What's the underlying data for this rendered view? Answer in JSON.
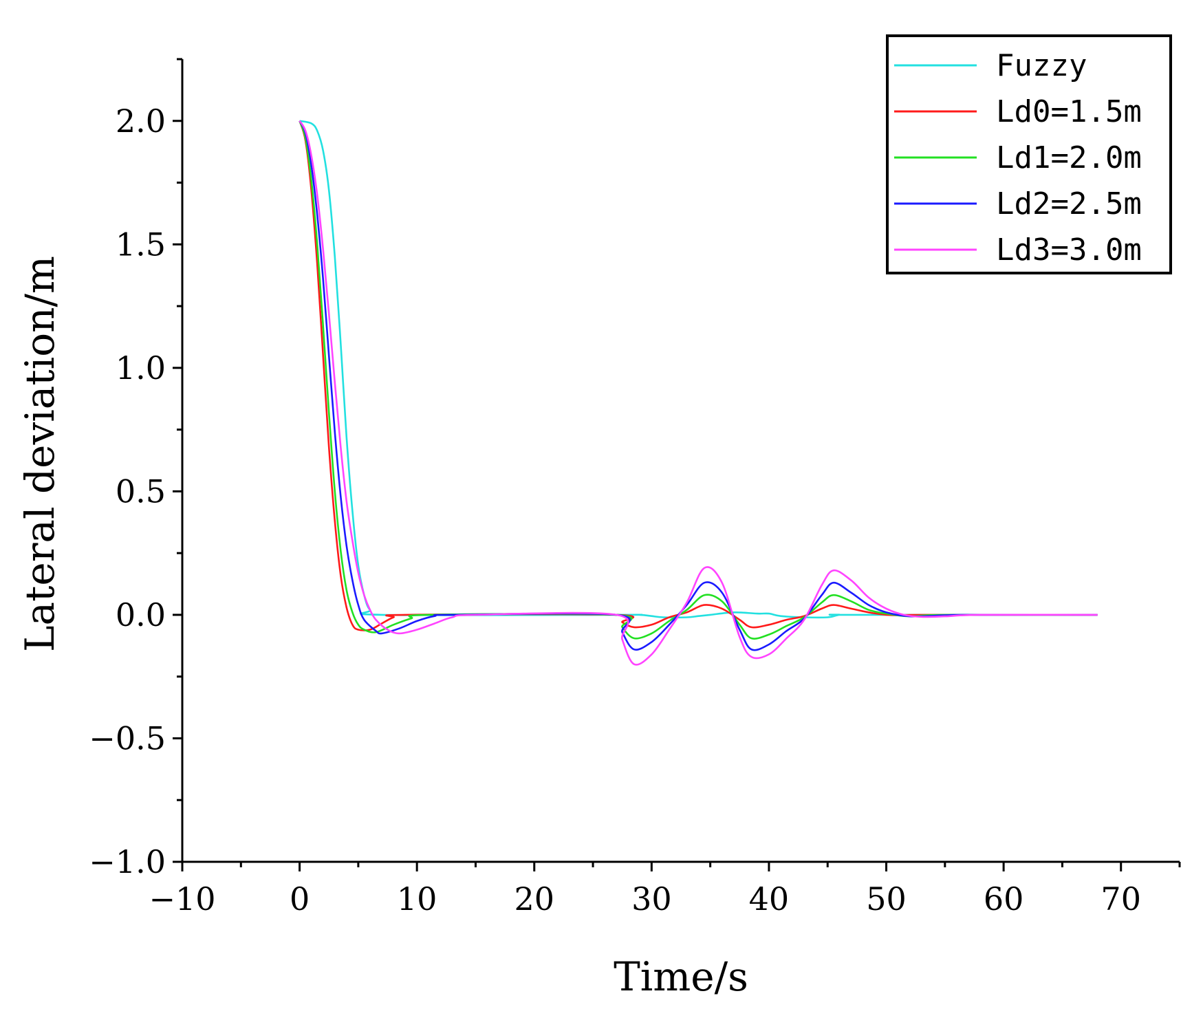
{
  "chart_data": {
    "type": "line",
    "xlabel": "Time/s",
    "ylabel": "Lateral deviation/m",
    "xlim": [
      -10,
      75
    ],
    "ylim": [
      -1.0,
      2.25
    ],
    "x_ticks": [
      -10,
      0,
      10,
      20,
      30,
      40,
      50,
      60,
      70
    ],
    "x_tick_labels": [
      "−10",
      "0",
      "10",
      "20",
      "30",
      "40",
      "50",
      "60",
      "70"
    ],
    "y_ticks": [
      -1.0,
      -0.5,
      0.0,
      0.5,
      1.0,
      1.5,
      2.0
    ],
    "y_tick_labels": [
      "−1.0",
      "−0.5",
      "0.0",
      "0.5",
      "1.0",
      "1.5",
      "2.0"
    ],
    "grid": false,
    "legend_position": "top-right",
    "series": [
      {
        "name": "Fuzzy",
        "color": "#22e0e0",
        "points": [
          [
            0,
            2.0
          ],
          [
            1,
            1.99
          ],
          [
            1.5,
            1.96
          ],
          [
            2,
            1.88
          ],
          [
            2.5,
            1.72
          ],
          [
            3,
            1.45
          ],
          [
            3.5,
            1.1
          ],
          [
            4,
            0.72
          ],
          [
            4.5,
            0.42
          ],
          [
            5,
            0.2
          ],
          [
            5.5,
            0.08
          ],
          [
            6,
            0.02
          ],
          [
            7,
            0.0
          ],
          [
            27,
            0.0
          ],
          [
            29,
            0.0
          ],
          [
            30,
            -0.005
          ],
          [
            31,
            -0.01
          ],
          [
            33,
            -0.01
          ],
          [
            34,
            -0.005
          ],
          [
            35,
            0.0
          ],
          [
            37,
            0.01
          ],
          [
            39,
            0.005
          ],
          [
            40,
            0.005
          ],
          [
            41,
            -0.005
          ],
          [
            43,
            -0.01
          ],
          [
            45,
            -0.01
          ],
          [
            46,
            0.0
          ],
          [
            47,
            0.0
          ],
          [
            68,
            0.0
          ]
        ]
      },
      {
        "name": "Ld0=1.5m",
        "color": "#ff1a1a",
        "points": [
          [
            0,
            2.0
          ],
          [
            0.5,
            1.92
          ],
          [
            1,
            1.72
          ],
          [
            1.5,
            1.42
          ],
          [
            2,
            1.05
          ],
          [
            2.5,
            0.68
          ],
          [
            3,
            0.38
          ],
          [
            3.5,
            0.16
          ],
          [
            4,
            0.03
          ],
          [
            4.5,
            -0.04
          ],
          [
            5,
            -0.06
          ],
          [
            6,
            -0.06
          ],
          [
            7,
            -0.035
          ],
          [
            8,
            -0.01
          ],
          [
            9,
            0.0
          ],
          [
            27,
            0.0
          ],
          [
            27.5,
            -0.03
          ],
          [
            28.5,
            -0.05
          ],
          [
            30,
            -0.04
          ],
          [
            31.5,
            -0.01
          ],
          [
            33,
            0.01
          ],
          [
            34.5,
            0.04
          ],
          [
            36,
            0.025
          ],
          [
            37.5,
            -0.02
          ],
          [
            38.5,
            -0.05
          ],
          [
            40,
            -0.04
          ],
          [
            41.5,
            -0.02
          ],
          [
            43,
            -0.005
          ],
          [
            44.5,
            0.025
          ],
          [
            45.5,
            0.04
          ],
          [
            47,
            0.025
          ],
          [
            48.5,
            0.01
          ],
          [
            50,
            0.0
          ],
          [
            51.5,
            -0.002
          ],
          [
            53,
            0.0
          ],
          [
            68,
            0.0
          ]
        ]
      },
      {
        "name": "Ld1=2.0m",
        "color": "#22e022",
        "points": [
          [
            0,
            2.0
          ],
          [
            0.5,
            1.93
          ],
          [
            1,
            1.76
          ],
          [
            1.5,
            1.5
          ],
          [
            2,
            1.17
          ],
          [
            2.5,
            0.82
          ],
          [
            3,
            0.5
          ],
          [
            3.5,
            0.26
          ],
          [
            4,
            0.1
          ],
          [
            4.5,
            0.01
          ],
          [
            5,
            -0.04
          ],
          [
            5.5,
            -0.06
          ],
          [
            6.5,
            -0.07
          ],
          [
            8,
            -0.04
          ],
          [
            9.5,
            -0.015
          ],
          [
            11,
            0.0
          ],
          [
            27,
            0.0
          ],
          [
            27.5,
            -0.05
          ],
          [
            28.5,
            -0.095
          ],
          [
            30,
            -0.075
          ],
          [
            31.5,
            -0.025
          ],
          [
            33,
            0.02
          ],
          [
            34.5,
            0.08
          ],
          [
            36,
            0.055
          ],
          [
            37.5,
            -0.04
          ],
          [
            38.5,
            -0.095
          ],
          [
            40,
            -0.08
          ],
          [
            41.5,
            -0.045
          ],
          [
            43,
            -0.01
          ],
          [
            44.5,
            0.05
          ],
          [
            45.5,
            0.08
          ],
          [
            47,
            0.055
          ],
          [
            48.5,
            0.02
          ],
          [
            50,
            0.005
          ],
          [
            52,
            -0.006
          ],
          [
            55,
            0.0
          ],
          [
            68,
            0.0
          ]
        ]
      },
      {
        "name": "Ld2=2.5m",
        "color": "#1a1aff",
        "points": [
          [
            0,
            2.0
          ],
          [
            0.5,
            1.95
          ],
          [
            1,
            1.82
          ],
          [
            1.5,
            1.62
          ],
          [
            2,
            1.36
          ],
          [
            2.5,
            1.05
          ],
          [
            3,
            0.74
          ],
          [
            3.5,
            0.48
          ],
          [
            4,
            0.28
          ],
          [
            4.5,
            0.14
          ],
          [
            5,
            0.04
          ],
          [
            5.5,
            -0.02
          ],
          [
            6.5,
            -0.065
          ],
          [
            7,
            -0.075
          ],
          [
            8.5,
            -0.055
          ],
          [
            10,
            -0.025
          ],
          [
            11.5,
            -0.005
          ],
          [
            13,
            0.0
          ],
          [
            27,
            0.0
          ],
          [
            27.5,
            -0.07
          ],
          [
            28.5,
            -0.14
          ],
          [
            30,
            -0.11
          ],
          [
            31.5,
            -0.04
          ],
          [
            33,
            0.04
          ],
          [
            34.5,
            0.13
          ],
          [
            36,
            0.09
          ],
          [
            37.5,
            -0.06
          ],
          [
            38.5,
            -0.14
          ],
          [
            40,
            -0.12
          ],
          [
            41.5,
            -0.065
          ],
          [
            43,
            -0.015
          ],
          [
            44.5,
            0.08
          ],
          [
            45.5,
            0.13
          ],
          [
            47,
            0.09
          ],
          [
            48.5,
            0.04
          ],
          [
            50,
            0.01
          ],
          [
            52,
            -0.006
          ],
          [
            55,
            -0.002
          ],
          [
            57,
            0.0
          ],
          [
            68,
            0.0
          ]
        ]
      },
      {
        "name": "Ld3=3.0m",
        "color": "#ff44ff",
        "points": [
          [
            0,
            2.0
          ],
          [
            0.5,
            1.96
          ],
          [
            1,
            1.86
          ],
          [
            1.5,
            1.7
          ],
          [
            2,
            1.48
          ],
          [
            2.5,
            1.22
          ],
          [
            3,
            0.94
          ],
          [
            3.5,
            0.68
          ],
          [
            4,
            0.46
          ],
          [
            4.5,
            0.3
          ],
          [
            5,
            0.17
          ],
          [
            5.5,
            0.08
          ],
          [
            6,
            0.02
          ],
          [
            6.5,
            -0.02
          ],
          [
            7.5,
            -0.06
          ],
          [
            8.5,
            -0.075
          ],
          [
            10,
            -0.06
          ],
          [
            11.5,
            -0.035
          ],
          [
            13,
            -0.01
          ],
          [
            15,
            0.0
          ],
          [
            27,
            0.0
          ],
          [
            27.5,
            -0.1
          ],
          [
            28.5,
            -0.2
          ],
          [
            30,
            -0.16
          ],
          [
            31.5,
            -0.06
          ],
          [
            33,
            0.05
          ],
          [
            34.5,
            0.19
          ],
          [
            36,
            0.13
          ],
          [
            37.5,
            -0.09
          ],
          [
            38.5,
            -0.17
          ],
          [
            40,
            -0.16
          ],
          [
            41.5,
            -0.095
          ],
          [
            43,
            -0.02
          ],
          [
            44.5,
            0.12
          ],
          [
            45.5,
            0.18
          ],
          [
            47,
            0.14
          ],
          [
            48.5,
            0.07
          ],
          [
            50,
            0.025
          ],
          [
            51.5,
            0.0
          ],
          [
            53,
            -0.008
          ],
          [
            55,
            -0.006
          ],
          [
            58,
            0.0
          ],
          [
            68,
            0.0
          ]
        ]
      }
    ]
  }
}
